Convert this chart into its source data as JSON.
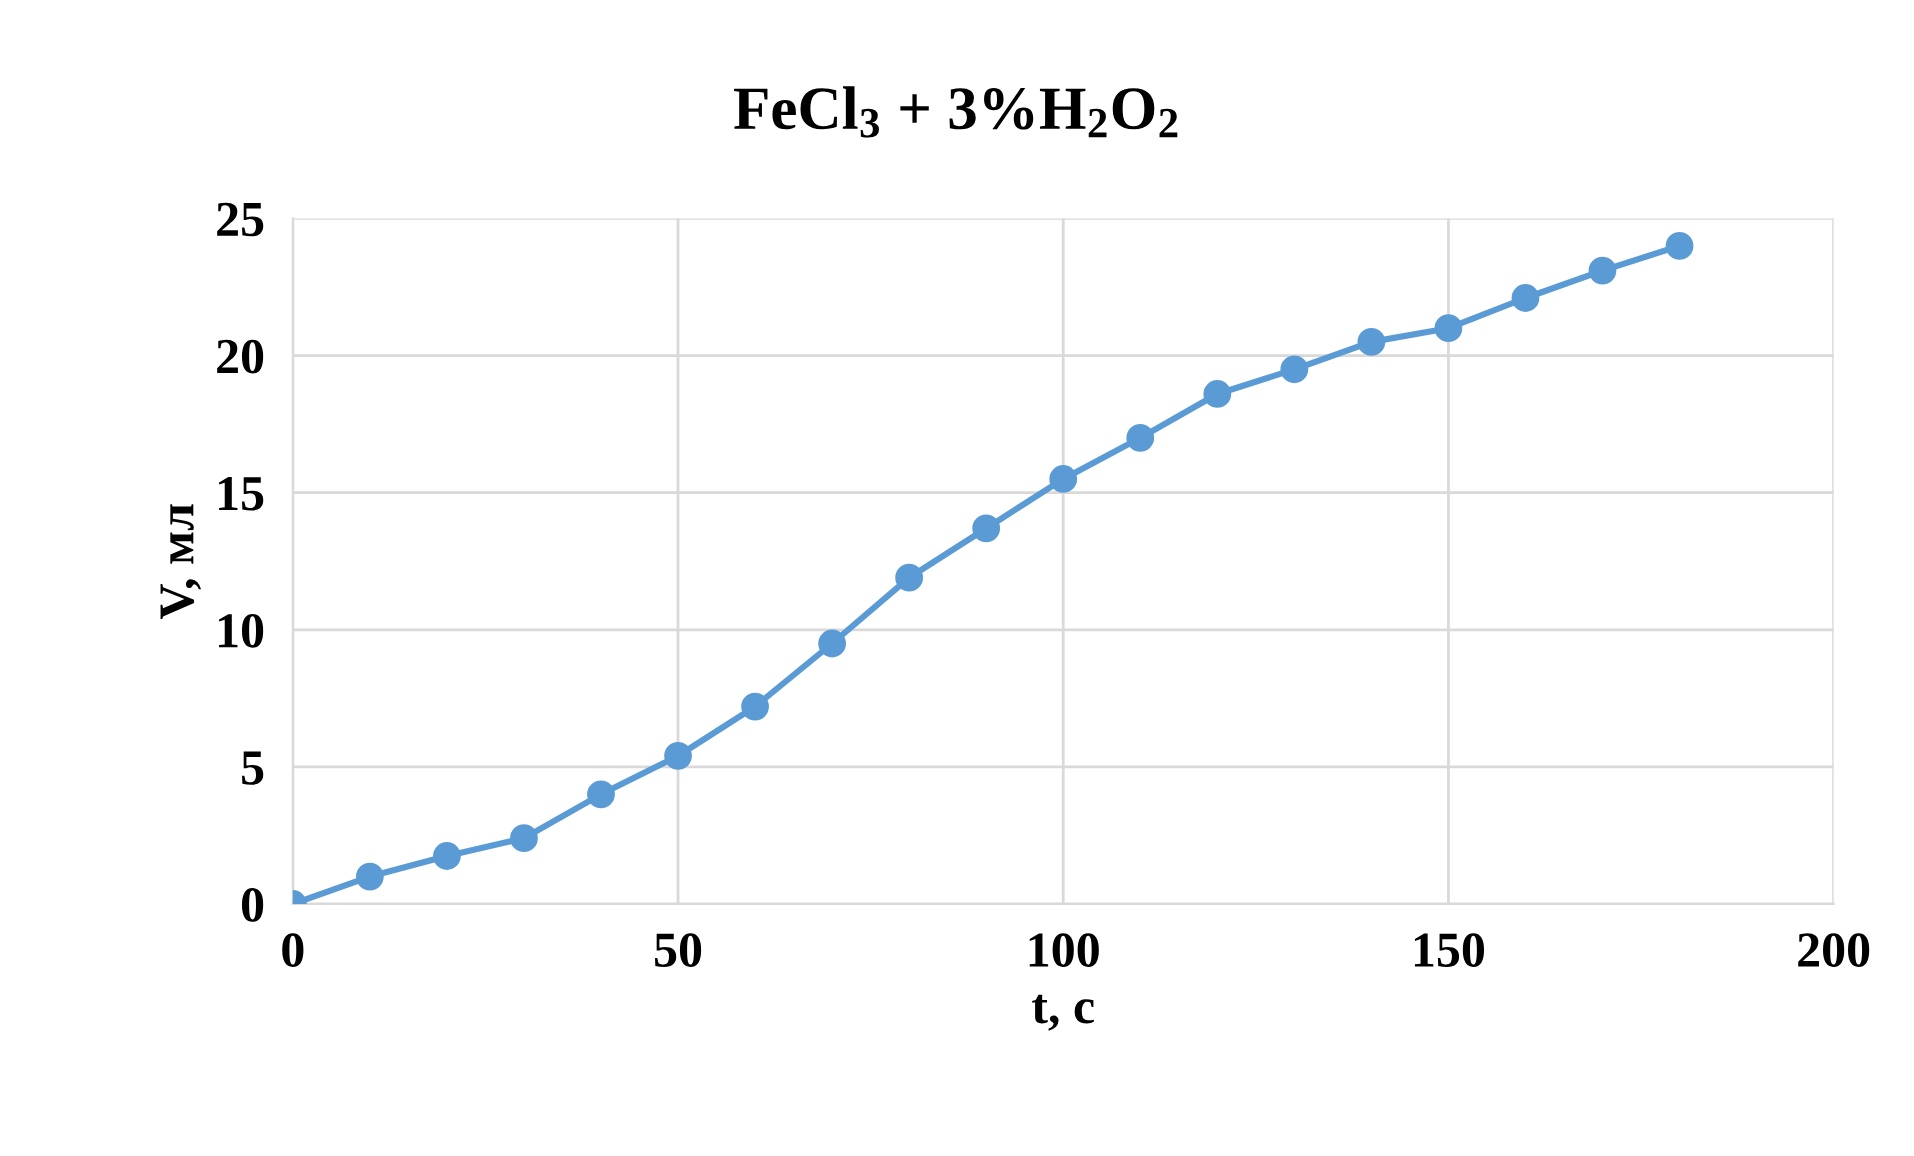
{
  "chart_data": {
    "type": "line",
    "title": "FeCl$_{3}$ + 3%H$_{2}$O$_{2}$",
    "xlabel": "t, с",
    "ylabel": "V, мл",
    "x": [
      0,
      10,
      20,
      30,
      40,
      50,
      60,
      70,
      80,
      90,
      100,
      110,
      120,
      130,
      140,
      150,
      160,
      170,
      180
    ],
    "series": [
      {
        "color": "#5b9bd5",
        "values": [
          0,
          1.0,
          1.75,
          2.4,
          4.0,
          5.4,
          7.2,
          9.5,
          11.9,
          13.7,
          15.5,
          17.0,
          18.6,
          19.5,
          20.5,
          21.0,
          22.1,
          23.1,
          24.0
        ]
      }
    ],
    "xlim": [
      0,
      200
    ],
    "xticks": [
      0,
      50,
      100,
      150,
      200
    ],
    "ylim": [
      0,
      25
    ],
    "yticks": [
      0,
      5,
      10,
      15,
      20,
      25
    ],
    "grid": true,
    "marker": "circle",
    "line_style": "solid"
  }
}
